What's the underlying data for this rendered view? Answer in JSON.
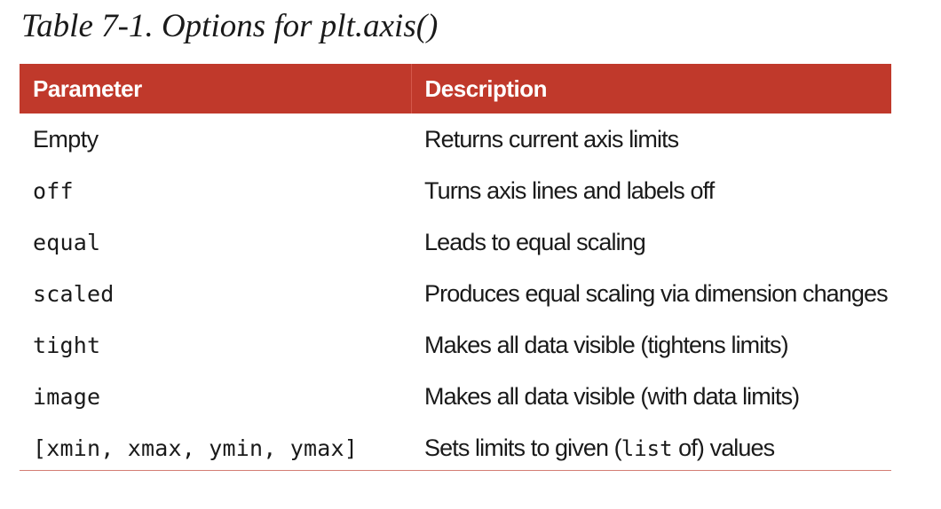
{
  "caption": "Table 7-1. Options for plt.axis()",
  "table": {
    "headers": [
      "Parameter",
      "Description"
    ],
    "rows": [
      {
        "parameter": "Empty",
        "parameter_style": "text",
        "description": "Returns current axis limits"
      },
      {
        "parameter": "off",
        "parameter_style": "code",
        "description": "Turns axis lines and labels off"
      },
      {
        "parameter": "equal",
        "parameter_style": "code",
        "description": "Leads to equal scaling"
      },
      {
        "parameter": "scaled",
        "parameter_style": "code",
        "description": "Produces equal scaling via dimension changes"
      },
      {
        "parameter": "tight",
        "parameter_style": "code",
        "description": "Makes all data visible (tightens limits)"
      },
      {
        "parameter": "image",
        "parameter_style": "code",
        "description": "Makes all data visible (with data limits)"
      },
      {
        "parameter": "[xmin, xmax, ymin, ymax]",
        "parameter_style": "code",
        "description_parts": [
          "Sets limits to given (",
          "list",
          " of) values"
        ]
      }
    ]
  },
  "colors": {
    "header_background": "#c0392b",
    "header_text": "#ffffff",
    "body_text": "#1a1a1a",
    "bottom_rule": "#d47d74"
  }
}
